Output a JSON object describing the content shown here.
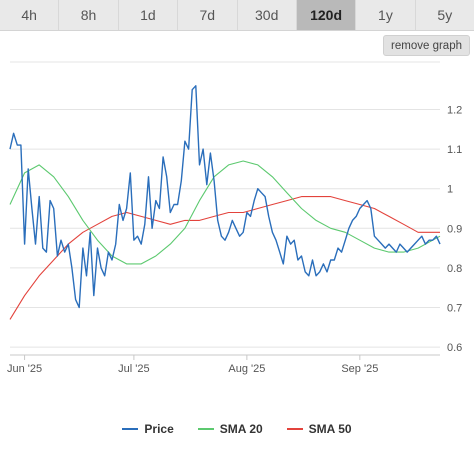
{
  "tabs": [
    {
      "label": "4h",
      "active": false
    },
    {
      "label": "8h",
      "active": false
    },
    {
      "label": "1d",
      "active": false
    },
    {
      "label": "7d",
      "active": false
    },
    {
      "label": "30d",
      "active": false
    },
    {
      "label": "120d",
      "active": true
    },
    {
      "label": "1y",
      "active": false
    },
    {
      "label": "5y",
      "active": false
    }
  ],
  "remove_graph_label": "remove graph",
  "colors": {
    "price": "#2a6ebb",
    "sma20": "#5cc96f",
    "sma50": "#e3433c",
    "grid": "#e4e4e4"
  },
  "chart_data": {
    "type": "line",
    "x_ticks": [
      {
        "label": "Jun '25",
        "date": "2025-06-01"
      },
      {
        "label": "Jul '25",
        "date": "2025-07-01"
      },
      {
        "label": "Aug '25",
        "date": "2025-08-01"
      },
      {
        "label": "Sep '25",
        "date": "2025-09-01"
      }
    ],
    "xlim": [
      "2025-05-28",
      "2025-09-23"
    ],
    "y_ticks": [
      0.6,
      0.7,
      0.8,
      0.9,
      1,
      1.1,
      1.2
    ],
    "ylim": [
      0.58,
      1.32
    ],
    "grid": true,
    "legend_position": "bottom",
    "series": [
      {
        "name": "Price",
        "color": "#2a6ebb",
        "x": [
          "2025-05-28",
          "2025-05-29",
          "2025-05-30",
          "2025-05-31",
          "2025-06-01",
          "2025-06-02",
          "2025-06-03",
          "2025-06-04",
          "2025-06-05",
          "2025-06-06",
          "2025-06-07",
          "2025-06-08",
          "2025-06-09",
          "2025-06-10",
          "2025-06-11",
          "2025-06-12",
          "2025-06-13",
          "2025-06-14",
          "2025-06-15",
          "2025-06-16",
          "2025-06-17",
          "2025-06-18",
          "2025-06-19",
          "2025-06-20",
          "2025-06-21",
          "2025-06-22",
          "2025-06-23",
          "2025-06-24",
          "2025-06-25",
          "2025-06-26",
          "2025-06-27",
          "2025-06-28",
          "2025-06-29",
          "2025-06-30",
          "2025-07-01",
          "2025-07-02",
          "2025-07-03",
          "2025-07-04",
          "2025-07-05",
          "2025-07-06",
          "2025-07-07",
          "2025-07-08",
          "2025-07-09",
          "2025-07-10",
          "2025-07-11",
          "2025-07-12",
          "2025-07-13",
          "2025-07-14",
          "2025-07-15",
          "2025-07-16",
          "2025-07-17",
          "2025-07-18",
          "2025-07-19",
          "2025-07-20",
          "2025-07-21",
          "2025-07-22",
          "2025-07-23",
          "2025-07-24",
          "2025-07-25",
          "2025-07-26",
          "2025-07-27",
          "2025-07-28",
          "2025-07-29",
          "2025-07-30",
          "2025-07-31",
          "2025-08-01",
          "2025-08-02",
          "2025-08-03",
          "2025-08-04",
          "2025-08-05",
          "2025-08-06",
          "2025-08-07",
          "2025-08-08",
          "2025-08-09",
          "2025-08-10",
          "2025-08-11",
          "2025-08-12",
          "2025-08-13",
          "2025-08-14",
          "2025-08-15",
          "2025-08-16",
          "2025-08-17",
          "2025-08-18",
          "2025-08-19",
          "2025-08-20",
          "2025-08-21",
          "2025-08-22",
          "2025-08-23",
          "2025-08-24",
          "2025-08-25",
          "2025-08-26",
          "2025-08-27",
          "2025-08-28",
          "2025-08-29",
          "2025-08-30",
          "2025-08-31",
          "2025-09-01",
          "2025-09-02",
          "2025-09-03",
          "2025-09-04",
          "2025-09-05",
          "2025-09-06",
          "2025-09-07",
          "2025-09-08",
          "2025-09-09",
          "2025-09-10",
          "2025-09-11",
          "2025-09-12",
          "2025-09-13",
          "2025-09-14",
          "2025-09-15",
          "2025-09-16",
          "2025-09-17",
          "2025-09-18",
          "2025-09-19",
          "2025-09-20",
          "2025-09-21",
          "2025-09-22",
          "2025-09-23"
        ],
        "values": [
          1.1,
          1.14,
          1.11,
          1.11,
          0.86,
          1.05,
          0.95,
          0.86,
          0.98,
          0.85,
          0.84,
          0.97,
          0.95,
          0.83,
          0.87,
          0.84,
          0.86,
          0.8,
          0.72,
          0.7,
          0.85,
          0.78,
          0.89,
          0.73,
          0.85,
          0.8,
          0.78,
          0.84,
          0.82,
          0.86,
          0.96,
          0.92,
          0.95,
          1.04,
          0.87,
          0.88,
          0.86,
          0.91,
          1.03,
          0.9,
          0.97,
          0.95,
          1.08,
          1.03,
          0.94,
          0.96,
          0.96,
          1.02,
          1.12,
          1.1,
          1.25,
          1.26,
          1.06,
          1.1,
          1.01,
          1.09,
          1.02,
          0.92,
          0.88,
          0.87,
          0.89,
          0.92,
          0.9,
          0.88,
          0.89,
          0.94,
          0.93,
          0.97,
          1.0,
          0.99,
          0.98,
          0.93,
          0.89,
          0.87,
          0.84,
          0.81,
          0.88,
          0.86,
          0.87,
          0.82,
          0.83,
          0.79,
          0.78,
          0.82,
          0.78,
          0.79,
          0.81,
          0.79,
          0.82,
          0.82,
          0.85,
          0.84,
          0.87,
          0.9,
          0.92,
          0.93,
          0.95,
          0.96,
          0.97,
          0.95,
          0.88,
          0.87,
          0.86,
          0.85,
          0.86,
          0.85,
          0.84,
          0.86,
          0.85,
          0.84,
          0.85,
          0.86,
          0.87,
          0.88,
          0.86,
          0.87,
          0.87,
          0.88,
          0.86
        ]
      },
      {
        "name": "SMA 20",
        "color": "#5cc96f",
        "x": [
          "2025-05-28",
          "2025-06-01",
          "2025-06-05",
          "2025-06-09",
          "2025-06-13",
          "2025-06-17",
          "2025-06-21",
          "2025-06-25",
          "2025-06-29",
          "2025-07-03",
          "2025-07-07",
          "2025-07-11",
          "2025-07-15",
          "2025-07-19",
          "2025-07-23",
          "2025-07-27",
          "2025-07-31",
          "2025-08-04",
          "2025-08-08",
          "2025-08-12",
          "2025-08-16",
          "2025-08-20",
          "2025-08-24",
          "2025-08-28",
          "2025-09-01",
          "2025-09-05",
          "2025-09-09",
          "2025-09-13",
          "2025-09-17",
          "2025-09-21",
          "2025-09-23"
        ],
        "values": [
          0.96,
          1.04,
          1.06,
          1.03,
          0.98,
          0.92,
          0.87,
          0.83,
          0.81,
          0.81,
          0.83,
          0.86,
          0.9,
          0.97,
          1.03,
          1.06,
          1.07,
          1.06,
          1.03,
          0.99,
          0.95,
          0.92,
          0.9,
          0.89,
          0.87,
          0.85,
          0.84,
          0.84,
          0.85,
          0.87,
          0.88
        ]
      },
      {
        "name": "SMA 50",
        "color": "#e3433c",
        "x": [
          "2025-05-28",
          "2025-06-01",
          "2025-06-05",
          "2025-06-09",
          "2025-06-13",
          "2025-06-17",
          "2025-06-21",
          "2025-06-25",
          "2025-06-29",
          "2025-07-03",
          "2025-07-07",
          "2025-07-11",
          "2025-07-15",
          "2025-07-19",
          "2025-07-23",
          "2025-07-27",
          "2025-07-31",
          "2025-08-04",
          "2025-08-08",
          "2025-08-12",
          "2025-08-16",
          "2025-08-20",
          "2025-08-24",
          "2025-08-28",
          "2025-09-01",
          "2025-09-05",
          "2025-09-09",
          "2025-09-13",
          "2025-09-17",
          "2025-09-21",
          "2025-09-23"
        ],
        "values": [
          0.67,
          0.73,
          0.78,
          0.82,
          0.86,
          0.89,
          0.91,
          0.93,
          0.94,
          0.93,
          0.92,
          0.91,
          0.92,
          0.92,
          0.93,
          0.94,
          0.94,
          0.95,
          0.96,
          0.97,
          0.98,
          0.98,
          0.98,
          0.97,
          0.96,
          0.95,
          0.93,
          0.91,
          0.89,
          0.89,
          0.89
        ]
      }
    ]
  }
}
